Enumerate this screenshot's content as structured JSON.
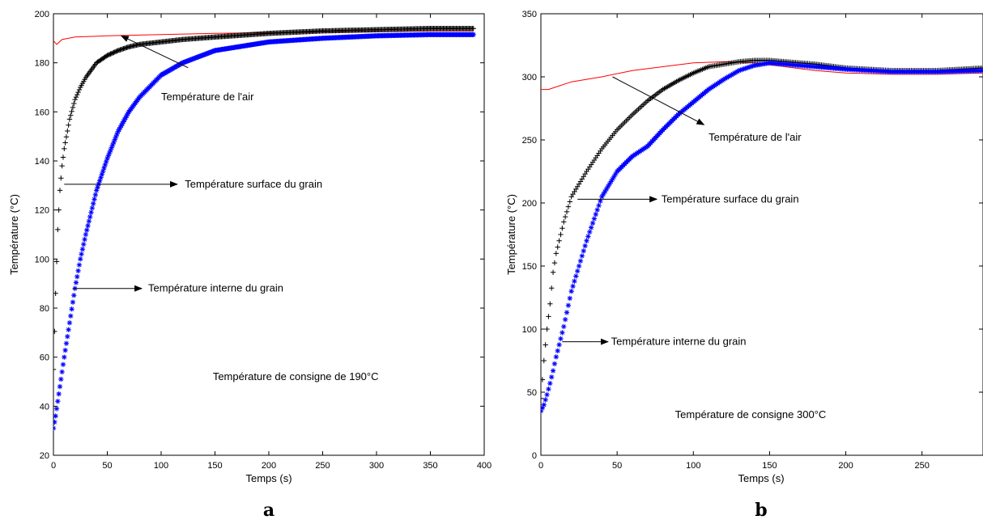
{
  "chart_data": [
    {
      "type": "line",
      "panel_label": "a",
      "xlabel": "Temps (s)",
      "ylabel": "Température (°C)",
      "xlim": [
        0,
        400
      ],
      "ylim": [
        20,
        200
      ],
      "xticks": [
        0,
        50,
        100,
        150,
        200,
        250,
        300,
        350,
        400
      ],
      "yticks": [
        20,
        40,
        60,
        80,
        100,
        120,
        140,
        160,
        180,
        200
      ],
      "grid": false,
      "series": [
        {
          "color": "#ff0000",
          "marker": "none",
          "x": [
            0,
            3,
            8,
            20,
            50,
            100,
            150,
            200,
            250,
            300,
            350,
            390
          ],
          "y": [
            189,
            187.5,
            189.5,
            190.5,
            191,
            191.5,
            192,
            192.3,
            192.5,
            192.7,
            193,
            193
          ]
        },
        {
          "color": "#000000",
          "marker": "+",
          "x": [
            0,
            2,
            4,
            6,
            8,
            10,
            15,
            20,
            25,
            30,
            40,
            50,
            60,
            70,
            80,
            100,
            120,
            150,
            200,
            250,
            300,
            350,
            390
          ],
          "y": [
            55,
            86,
            112,
            128,
            138,
            145,
            157,
            165,
            170,
            174,
            180,
            183,
            185,
            186.5,
            187.5,
            188.5,
            189.5,
            190.5,
            192,
            193,
            193.5,
            194,
            194
          ]
        },
        {
          "color": "#0000ff",
          "marker": "*",
          "x": [
            0,
            2,
            4,
            6,
            8,
            10,
            15,
            20,
            25,
            30,
            40,
            50,
            60,
            70,
            80,
            100,
            120,
            150,
            200,
            250,
            300,
            350,
            390
          ],
          "y": [
            31,
            36,
            42,
            48,
            54,
            60,
            74,
            88,
            100,
            110,
            128,
            141,
            152,
            160,
            166,
            175,
            180,
            185,
            188.5,
            190,
            191,
            191.5,
            191.5
          ]
        }
      ],
      "annotations": [
        {
          "text": "Température de l'air",
          "x": 100,
          "y": 166,
          "arrow_from": [
            125,
            178
          ],
          "arrow_to": [
            63,
            191
          ]
        },
        {
          "text": "Température surface du grain",
          "x": 122,
          "y": 130.5,
          "arrow_from": [
            10,
            130.5
          ],
          "arrow_to": [
            115,
            130.5
          ]
        },
        {
          "text": "Température interne du grain",
          "x": 88,
          "y": 88,
          "arrow_from": [
            18,
            88
          ],
          "arrow_to": [
            82,
            88
          ]
        },
        {
          "text": "Température de consigne de 190°C",
          "x": 148,
          "y": 52,
          "arrow_from": null,
          "arrow_to": null
        }
      ]
    },
    {
      "type": "line",
      "panel_label": "b",
      "xlabel": "Temps (s)",
      "ylabel": "Température (°C)",
      "xlim": [
        0,
        290
      ],
      "ylim": [
        0,
        350
      ],
      "xticks": [
        0,
        50,
        100,
        150,
        200,
        250
      ],
      "yticks": [
        0,
        50,
        100,
        150,
        200,
        250,
        300,
        350
      ],
      "grid": false,
      "series": [
        {
          "color": "#ff0000",
          "marker": "none",
          "x": [
            0,
            5,
            10,
            20,
            40,
            60,
            80,
            100,
            120,
            140,
            160,
            180,
            200,
            230,
            260,
            290
          ],
          "y": [
            290,
            290,
            292,
            296,
            300,
            305,
            308,
            311,
            312,
            311,
            308,
            305,
            303,
            302,
            302,
            303
          ]
        },
        {
          "color": "#000000",
          "marker": "+",
          "x": [
            0,
            2,
            4,
            6,
            8,
            10,
            15,
            20,
            30,
            40,
            50,
            60,
            70,
            80,
            90,
            100,
            110,
            120,
            130,
            140,
            150,
            160,
            180,
            200,
            230,
            260,
            290
          ],
          "y": [
            45,
            75,
            100,
            120,
            145,
            160,
            185,
            205,
            225,
            243,
            258,
            270,
            281,
            290,
            297,
            303,
            308,
            310,
            312,
            313,
            313,
            312,
            310,
            307,
            305,
            305,
            307
          ]
        },
        {
          "color": "#0000ff",
          "marker": "*",
          "x": [
            0,
            2,
            4,
            6,
            8,
            10,
            15,
            20,
            30,
            40,
            50,
            60,
            70,
            80,
            90,
            100,
            110,
            120,
            130,
            140,
            150,
            160,
            180,
            200,
            230,
            260,
            290
          ],
          "y": [
            35,
            40,
            48,
            57,
            67,
            78,
            102,
            130,
            170,
            205,
            225,
            237,
            245,
            258,
            270,
            280,
            290,
            298,
            305,
            309,
            311,
            310,
            308,
            306,
            304,
            304,
            305
          ]
        }
      ],
      "annotations": [
        {
          "text": "Température de l'air",
          "x": 110,
          "y": 252,
          "arrow_from": [
            47,
            300
          ],
          "arrow_to": [
            107,
            262
          ]
        },
        {
          "text": "Température surface du grain",
          "x": 79,
          "y": 203,
          "arrow_from": [
            24,
            203
          ],
          "arrow_to": [
            76,
            203
          ]
        },
        {
          "text": "Température interne du grain",
          "x": 46,
          "y": 90,
          "arrow_from": [
            14,
            90
          ],
          "arrow_to": [
            44,
            90
          ]
        },
        {
          "text": "Température de consigne 300°C",
          "x": 88,
          "y": 32,
          "arrow_from": null,
          "arrow_to": null
        }
      ]
    }
  ]
}
